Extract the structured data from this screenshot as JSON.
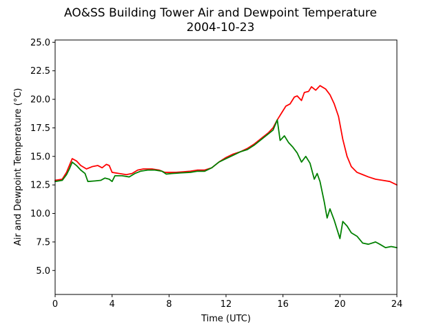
{
  "chart_data": {
    "type": "line",
    "title": "AO&SS Building Tower Air and Dewpoint Temperature",
    "subtitle": "2004-10-23",
    "xlabel": "Time (UTC)",
    "ylabel": "Air and Dewpoint Temperature (°C)",
    "xlim": [
      0,
      24
    ],
    "ylim": [
      2.9,
      25.2
    ],
    "xticks": [
      0,
      4,
      8,
      12,
      16,
      20,
      24
    ],
    "xtick_labels": [
      "0",
      "4",
      "8",
      "12",
      "16",
      "20",
      "24"
    ],
    "yticks": [
      5.0,
      7.5,
      10.0,
      12.5,
      15.0,
      17.5,
      20.0,
      22.5,
      25.0
    ],
    "ytick_labels": [
      "5.0",
      "7.5",
      "10.0",
      "12.5",
      "15.0",
      "17.5",
      "20.0",
      "22.5",
      "25.0"
    ],
    "grid": false,
    "series": [
      {
        "color": "#ff0000",
        "points": [
          [
            0,
            12.9
          ],
          [
            0.5,
            13.0
          ],
          [
            0.8,
            13.6
          ],
          [
            1.0,
            14.2
          ],
          [
            1.2,
            14.8
          ],
          [
            1.5,
            14.6
          ],
          [
            1.8,
            14.2
          ],
          [
            2.2,
            13.9
          ],
          [
            2.6,
            14.1
          ],
          [
            3.0,
            14.2
          ],
          [
            3.3,
            14.0
          ],
          [
            3.6,
            14.3
          ],
          [
            3.8,
            14.2
          ],
          [
            4.0,
            13.6
          ],
          [
            4.5,
            13.5
          ],
          [
            5.0,
            13.4
          ],
          [
            5.4,
            13.5
          ],
          [
            5.8,
            13.8
          ],
          [
            6.2,
            13.9
          ],
          [
            6.8,
            13.9
          ],
          [
            7.3,
            13.8
          ],
          [
            7.7,
            13.6
          ],
          [
            8.0,
            13.6
          ],
          [
            8.5,
            13.6
          ],
          [
            9.0,
            13.65
          ],
          [
            9.5,
            13.7
          ],
          [
            10.0,
            13.8
          ],
          [
            10.5,
            13.8
          ],
          [
            11.0,
            14.0
          ],
          [
            11.5,
            14.5
          ],
          [
            12.0,
            14.9
          ],
          [
            12.5,
            15.2
          ],
          [
            13.0,
            15.4
          ],
          [
            13.5,
            15.7
          ],
          [
            14.0,
            16.1
          ],
          [
            14.5,
            16.6
          ],
          [
            15.0,
            17.1
          ],
          [
            15.3,
            17.5
          ],
          [
            15.6,
            18.2
          ],
          [
            15.9,
            18.8
          ],
          [
            16.2,
            19.4
          ],
          [
            16.5,
            19.6
          ],
          [
            16.8,
            20.2
          ],
          [
            17.0,
            20.3
          ],
          [
            17.3,
            19.9
          ],
          [
            17.5,
            20.6
          ],
          [
            17.8,
            20.7
          ],
          [
            18.0,
            21.1
          ],
          [
            18.3,
            20.8
          ],
          [
            18.6,
            21.2
          ],
          [
            19.0,
            20.9
          ],
          [
            19.3,
            20.4
          ],
          [
            19.6,
            19.6
          ],
          [
            19.9,
            18.5
          ],
          [
            20.2,
            16.5
          ],
          [
            20.5,
            15.0
          ],
          [
            20.8,
            14.1
          ],
          [
            21.2,
            13.6
          ],
          [
            21.6,
            13.4
          ],
          [
            22.0,
            13.2
          ],
          [
            22.5,
            13.0
          ],
          [
            23.0,
            12.9
          ],
          [
            23.5,
            12.8
          ],
          [
            24.0,
            12.5
          ]
        ]
      },
      {
        "color": "#008000",
        "points": [
          [
            0,
            12.8
          ],
          [
            0.5,
            12.9
          ],
          [
            0.8,
            13.4
          ],
          [
            1.0,
            13.9
          ],
          [
            1.2,
            14.5
          ],
          [
            1.5,
            14.2
          ],
          [
            1.8,
            13.8
          ],
          [
            2.1,
            13.5
          ],
          [
            2.3,
            12.8
          ],
          [
            2.8,
            12.85
          ],
          [
            3.2,
            12.9
          ],
          [
            3.5,
            13.1
          ],
          [
            3.8,
            13.0
          ],
          [
            4.0,
            12.8
          ],
          [
            4.2,
            13.3
          ],
          [
            4.7,
            13.3
          ],
          [
            5.2,
            13.2
          ],
          [
            5.6,
            13.5
          ],
          [
            6.0,
            13.7
          ],
          [
            6.5,
            13.8
          ],
          [
            7.0,
            13.8
          ],
          [
            7.5,
            13.7
          ],
          [
            7.8,
            13.45
          ],
          [
            8.2,
            13.5
          ],
          [
            8.8,
            13.55
          ],
          [
            9.5,
            13.6
          ],
          [
            10.0,
            13.7
          ],
          [
            10.5,
            13.7
          ],
          [
            11.0,
            14.0
          ],
          [
            11.5,
            14.5
          ],
          [
            12.0,
            14.8
          ],
          [
            12.5,
            15.1
          ],
          [
            13.0,
            15.4
          ],
          [
            13.5,
            15.6
          ],
          [
            14.0,
            16.0
          ],
          [
            14.5,
            16.5
          ],
          [
            15.0,
            17.0
          ],
          [
            15.3,
            17.3
          ],
          [
            15.6,
            18.2
          ],
          [
            15.8,
            16.4
          ],
          [
            16.1,
            16.8
          ],
          [
            16.4,
            16.2
          ],
          [
            16.7,
            15.8
          ],
          [
            17.0,
            15.3
          ],
          [
            17.3,
            14.5
          ],
          [
            17.6,
            15.0
          ],
          [
            17.9,
            14.4
          ],
          [
            18.2,
            13.0
          ],
          [
            18.4,
            13.5
          ],
          [
            18.6,
            12.8
          ],
          [
            18.9,
            11.0
          ],
          [
            19.1,
            9.6
          ],
          [
            19.3,
            10.4
          ],
          [
            19.6,
            9.4
          ],
          [
            19.8,
            8.6
          ],
          [
            20.0,
            7.8
          ],
          [
            20.2,
            9.3
          ],
          [
            20.5,
            8.9
          ],
          [
            20.8,
            8.3
          ],
          [
            21.2,
            8.0
          ],
          [
            21.6,
            7.4
          ],
          [
            22.0,
            7.3
          ],
          [
            22.5,
            7.5
          ],
          [
            22.8,
            7.3
          ],
          [
            23.2,
            7.0
          ],
          [
            23.6,
            7.1
          ],
          [
            24.0,
            7.0
          ]
        ]
      }
    ]
  }
}
